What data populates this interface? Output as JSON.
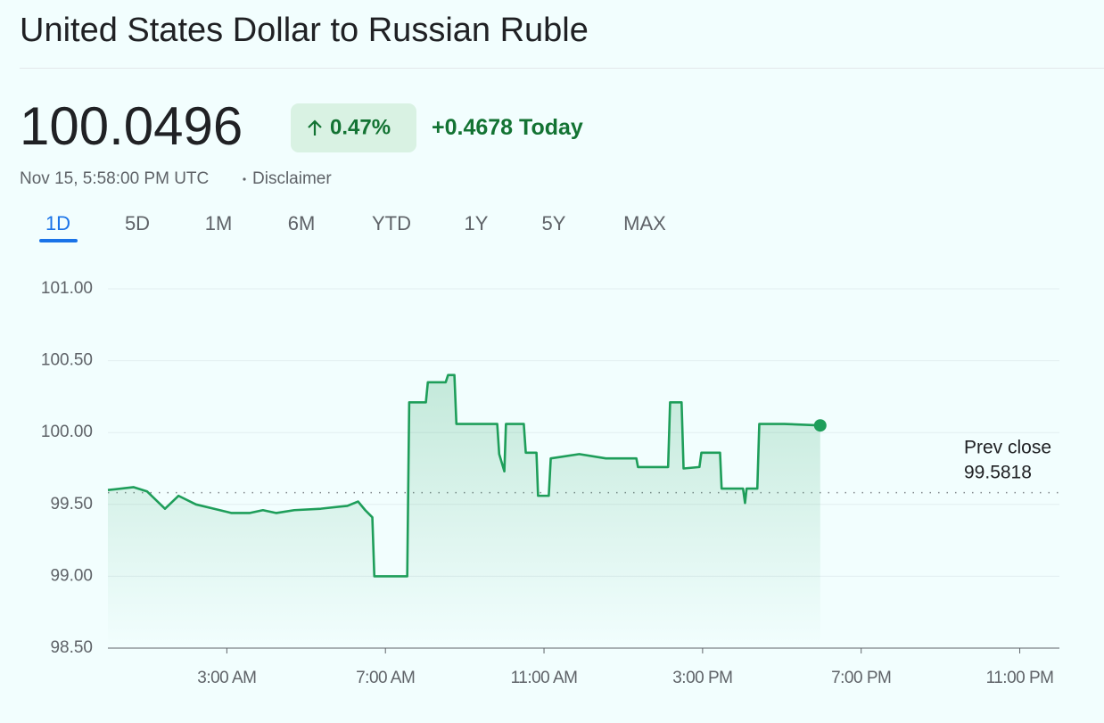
{
  "header": {
    "title": "United States Dollar to Russian Ruble",
    "price": 100.0496,
    "change_percent": "0.47%",
    "change": "+0.4678",
    "change_period": "Today",
    "timestamp": "Nov 15, 5:58:00 PM UTC",
    "disclaimer": "Disclaimer"
  },
  "tabs": [
    "1D",
    "5D",
    "1M",
    "6M",
    "YTD",
    "1Y",
    "5Y",
    "MAX"
  ],
  "active_tab": 0,
  "chart_data": {
    "type": "line",
    "color": "#1e9e5a",
    "grid": true,
    "x": [
      0,
      0.65,
      0.99,
      1.44,
      1.78,
      2.22,
      2.67,
      3.12,
      3.57,
      3.91,
      4.25,
      4.7,
      5.37,
      6.04,
      6.31,
      6.49,
      6.67,
      6.72,
      7.55,
      7.6,
      8.02,
      8.07,
      8.52,
      8.58,
      8.74,
      8.79,
      9.82,
      9.87,
      10.0,
      10.04,
      10.49,
      10.54,
      10.81,
      10.85,
      11.12,
      11.17,
      11.89,
      12.56,
      13.33,
      13.37,
      14.13,
      14.18,
      14.47,
      14.52,
      14.92,
      14.97,
      15.44,
      15.48,
      16.02,
      16.07,
      16.11,
      16.38,
      16.43,
      17.06,
      17.967
    ],
    "values": [
      99.6,
      99.62,
      99.59,
      99.47,
      99.56,
      99.5,
      99.47,
      99.44,
      99.44,
      99.46,
      99.44,
      99.46,
      99.47,
      99.49,
      99.52,
      99.46,
      99.41,
      99.0,
      99.0,
      100.21,
      100.21,
      100.35,
      100.35,
      100.4,
      100.4,
      100.06,
      100.06,
      99.85,
      99.73,
      100.06,
      100.06,
      99.86,
      99.86,
      99.56,
      99.56,
      99.82,
      99.85,
      99.82,
      99.82,
      99.76,
      99.76,
      100.21,
      100.21,
      99.75,
      99.76,
      99.86,
      99.86,
      99.61,
      99.61,
      99.51,
      99.61,
      99.61,
      100.06,
      100.06,
      100.0496
    ],
    "xlim": [
      0,
      24
    ],
    "xticks": [
      {
        "value": 3,
        "label": "3:00 AM"
      },
      {
        "value": 7,
        "label": "7:00 AM"
      },
      {
        "value": 11,
        "label": "11:00 AM"
      },
      {
        "value": 15,
        "label": "3:00 PM"
      },
      {
        "value": 19,
        "label": "7:00 PM"
      },
      {
        "value": 23,
        "label": "11:00 PM"
      }
    ],
    "ylim": [
      98.5,
      101.0
    ],
    "yticks": [
      {
        "value": 98.5,
        "label": "98.50"
      },
      {
        "value": 99,
        "label": "99.00"
      },
      {
        "value": 99.5,
        "label": "99.50"
      },
      {
        "value": 100,
        "label": "100.00"
      },
      {
        "value": 100.5,
        "label": "100.50"
      },
      {
        "value": 101,
        "label": "101.00"
      }
    ],
    "prev_close_label": "Prev close",
    "prev_close": 99.5818
  }
}
